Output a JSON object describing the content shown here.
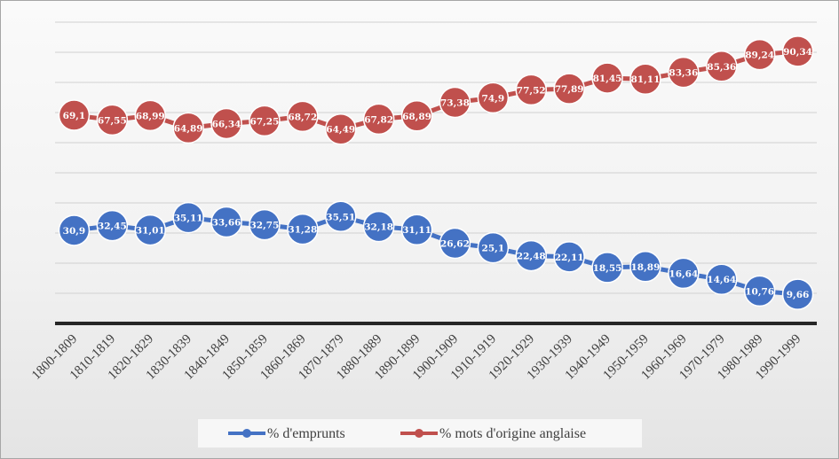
{
  "chart_data": {
    "type": "line",
    "categories": [
      "1800-1809",
      "1810-1819",
      "1820-1829",
      "1830-1839",
      "1840-1849",
      "1850-1859",
      "1860-1869",
      "1870-1879",
      "1880-1889",
      "1890-1899",
      "1900-1909",
      "1910-1919",
      "1920-1929",
      "1930-1939",
      "1940-1949",
      "1950-1959",
      "1960-1969",
      "1970-1979",
      "1980-1989",
      "1990-1999"
    ],
    "series": [
      {
        "name": "% d'emprunts",
        "color": "#4472c4",
        "values": [
          30.9,
          32.45,
          31.01,
          35.11,
          33.66,
          32.75,
          31.28,
          35.51,
          32.18,
          31.11,
          26.62,
          25.1,
          22.48,
          22.11,
          18.55,
          18.89,
          16.64,
          14.64,
          10.76,
          9.66
        ],
        "labels": [
          "30,9",
          "32,45",
          "31,01",
          "35,11",
          "33,66",
          "32,75",
          "31,28",
          "35,51",
          "32,18",
          "31,11",
          "26,62",
          "25,1",
          "22,48",
          "22,11",
          "18,55",
          "18,89",
          "16,64",
          "14,64",
          "10,76",
          "9,66"
        ]
      },
      {
        "name": "% mots d'origine anglaise",
        "color": "#c0504d",
        "values": [
          69.1,
          67.55,
          68.99,
          64.89,
          66.34,
          67.25,
          68.72,
          64.49,
          67.82,
          68.89,
          73.38,
          74.9,
          77.52,
          77.89,
          81.45,
          81.11,
          83.36,
          85.36,
          89.24,
          90.34
        ],
        "labels": [
          "69,1",
          "67,55",
          "68,99",
          "64,89",
          "66,34",
          "67,25",
          "68,72",
          "64,49",
          "67,82",
          "68,89",
          "73,38",
          "74,9",
          "77,52",
          "77,89",
          "81,45",
          "81,11",
          "83,36",
          "85,36",
          "89,24",
          "90,34"
        ]
      }
    ],
    "ylim": [
      0,
      100
    ],
    "grid": true,
    "legend_position": "bottom"
  }
}
